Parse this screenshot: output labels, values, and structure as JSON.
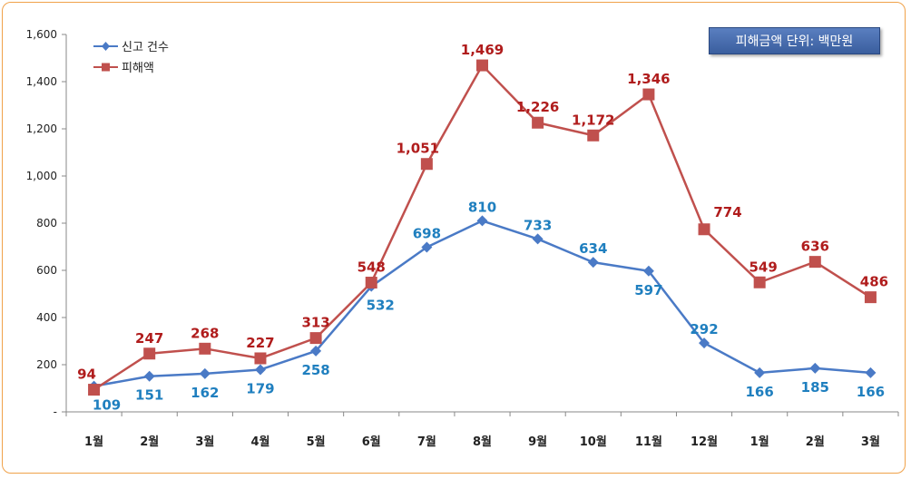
{
  "chart_data": {
    "type": "line",
    "categories": [
      "1월",
      "2월",
      "3월",
      "4월",
      "5월",
      "6월",
      "7월",
      "8월",
      "9월",
      "10월",
      "11월",
      "12월",
      "1월",
      "2월",
      "3월"
    ],
    "series": [
      {
        "name": "신고 건수",
        "values": [
          109,
          151,
          162,
          179,
          258,
          532,
          698,
          810,
          733,
          634,
          597,
          292,
          166,
          185,
          166
        ],
        "labels": [
          "109",
          "151",
          "162",
          "179",
          "258",
          "532",
          "698",
          "810",
          "733",
          "634",
          "597",
          "292",
          "166",
          "185",
          "166"
        ],
        "color": "#4a7ac6",
        "label_color": "#1f7fbf",
        "marker": "diamond"
      },
      {
        "name": "피해액",
        "values": [
          94,
          247,
          268,
          227,
          313,
          548,
          1051,
          1469,
          1226,
          1172,
          1346,
          774,
          549,
          636,
          486
        ],
        "labels": [
          "94",
          "247",
          "268",
          "227",
          "313",
          "548",
          "1,051",
          "1,469",
          "1,226",
          "1,172",
          "1,346",
          "774",
          "549",
          "636",
          "486"
        ],
        "color": "#c0504d",
        "label_color": "#b01c1c",
        "marker": "square"
      }
    ],
    "yticks": [
      "-",
      "200",
      "400",
      "600",
      "800",
      "1,000",
      "1,200",
      "1,400",
      "1,600"
    ],
    "ylim": [
      0,
      1600
    ],
    "title": "",
    "xlabel": "",
    "ylabel": "",
    "grid": false,
    "legend_position": "top-left",
    "unit_note": "피해금액 단위: 백만원"
  }
}
